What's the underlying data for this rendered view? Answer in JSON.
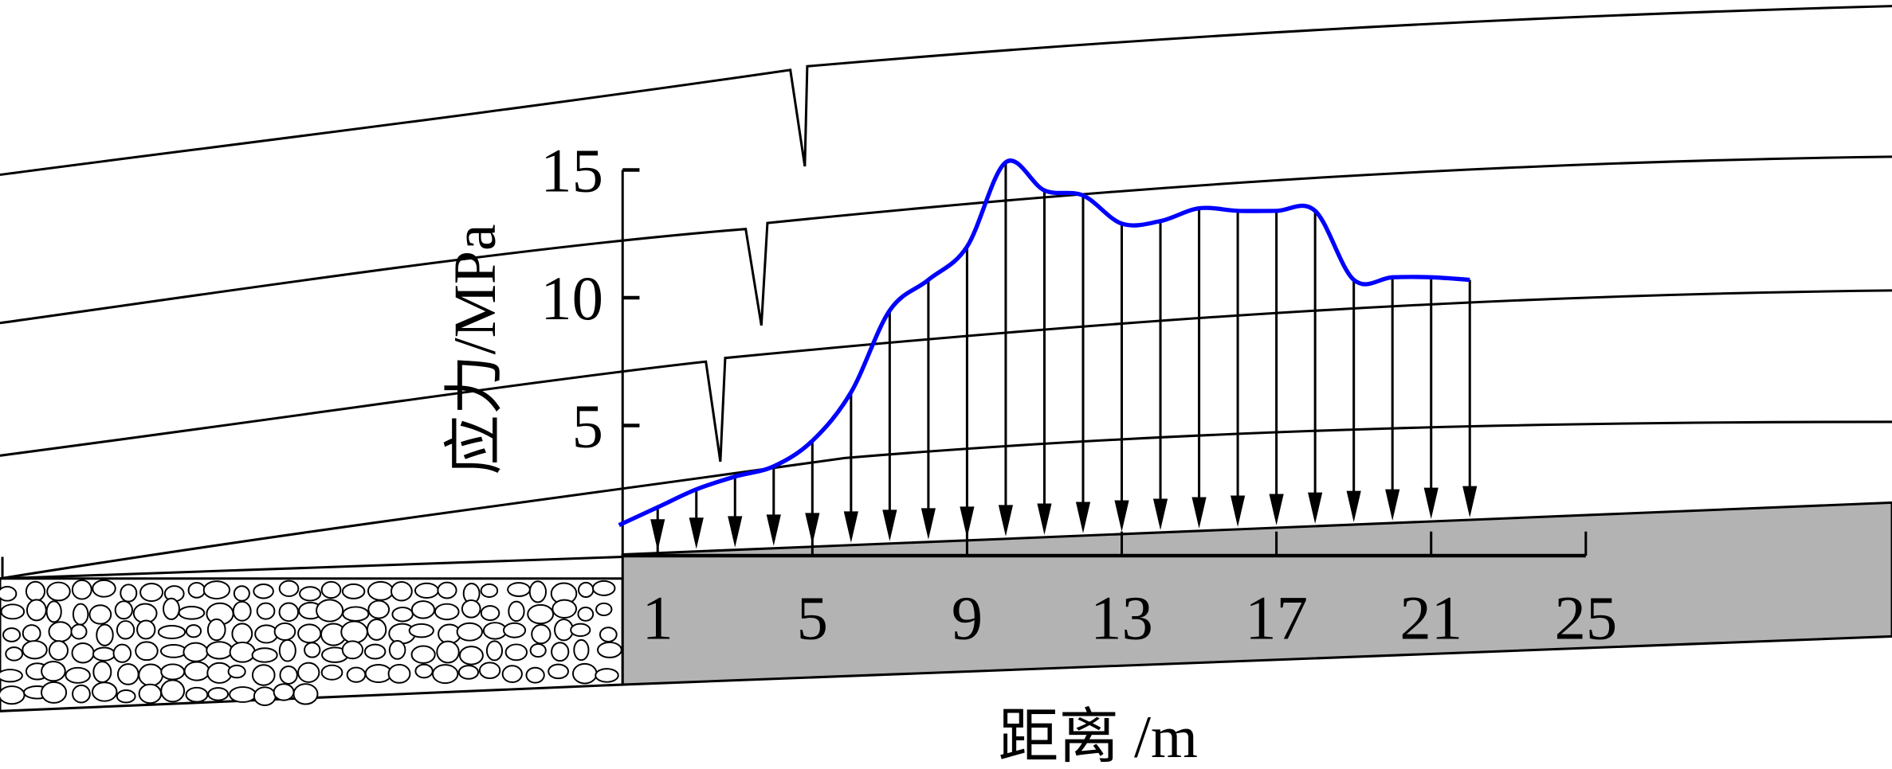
{
  "chart_data": {
    "type": "line",
    "title": "",
    "xlabel": "距离 /m",
    "ylabel": "应力/MPa",
    "xlim": [
      0,
      25
    ],
    "ylim": [
      0,
      15
    ],
    "x_ticks": [
      1,
      5,
      9,
      13,
      17,
      21,
      25
    ],
    "y_ticks": [
      5,
      10,
      15
    ],
    "grid": false,
    "series": [
      {
        "color": "#0000ff",
        "x": [
          0,
          1,
          2,
          3,
          4,
          5,
          6,
          7,
          8,
          9,
          10,
          11,
          12,
          13,
          14,
          15,
          16,
          17,
          18,
          19,
          20,
          21,
          22
        ],
        "values": [
          1.1,
          1.8,
          2.5,
          3.0,
          3.4,
          4.4,
          6.3,
          9.5,
          10.7,
          12.0,
          15.3,
          14.2,
          14.0,
          12.9,
          13.0,
          13.5,
          13.4,
          13.4,
          13.4,
          10.7,
          10.8,
          10.8,
          10.7
        ]
      }
    ],
    "arrows_at_x": [
      1,
      2,
      3,
      4,
      5,
      6,
      7,
      8,
      9,
      10,
      11,
      12,
      13,
      14,
      15,
      16,
      17,
      18,
      19,
      20,
      21,
      22
    ],
    "background": {
      "strata_color": "#000000",
      "coal_seam_color": "#b3b3b3"
    }
  }
}
